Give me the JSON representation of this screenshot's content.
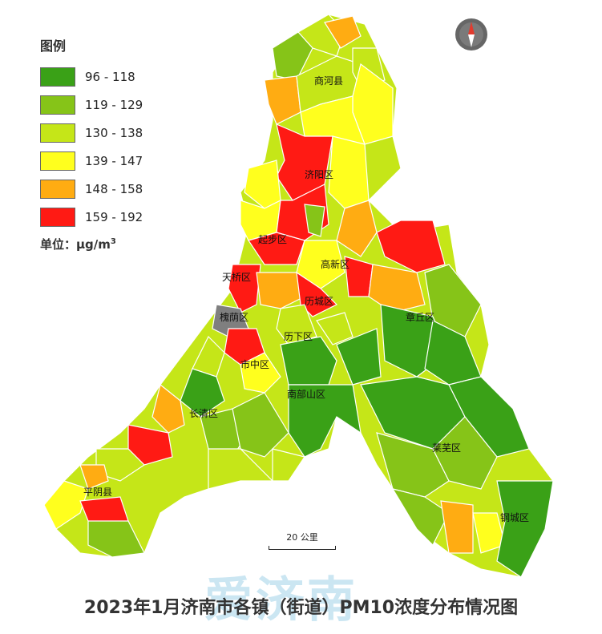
{
  "legend": {
    "title": "图例",
    "classes": [
      {
        "range": "96 - 118",
        "color": "#3aa117"
      },
      {
        "range": "119 - 129",
        "color": "#86c418"
      },
      {
        "range": "130 - 138",
        "color": "#c5e618"
      },
      {
        "range": "139 - 147",
        "color": "#ffff1e"
      },
      {
        "range": "148 - 158",
        "color": "#ffac12"
      },
      {
        "range": "159 - 192",
        "color": "#ff1a14"
      }
    ],
    "unit_prefix": "单位：μg/m",
    "unit_exp": "3"
  },
  "districts": {
    "shanghe": "商河县",
    "jiyang": "济阳区",
    "qihe_xian": "起步区",
    "gaoxin": "高新区",
    "tianqiao": "天桥区",
    "licheng": "历城区",
    "huaiyin": "槐荫区",
    "lixia": "历下区",
    "zhangqiu": "章丘区",
    "shizhong": "市中区",
    "nanbu": "南部山区",
    "changqing": "长清区",
    "laiwu": "莱芜区",
    "pingyin": "平阴县",
    "gangcheng": "钢城区"
  },
  "colors": {
    "no_data": "#7f7f7f",
    "boundary": "#ffffff",
    "district_boundary": "#666666"
  },
  "scale_label": "20 公里",
  "watermark": "爱济南",
  "caption": "2023年1月济南市各镇（街道）PM10浓度分布情况图",
  "icons": {
    "compass": "compass-icon"
  }
}
